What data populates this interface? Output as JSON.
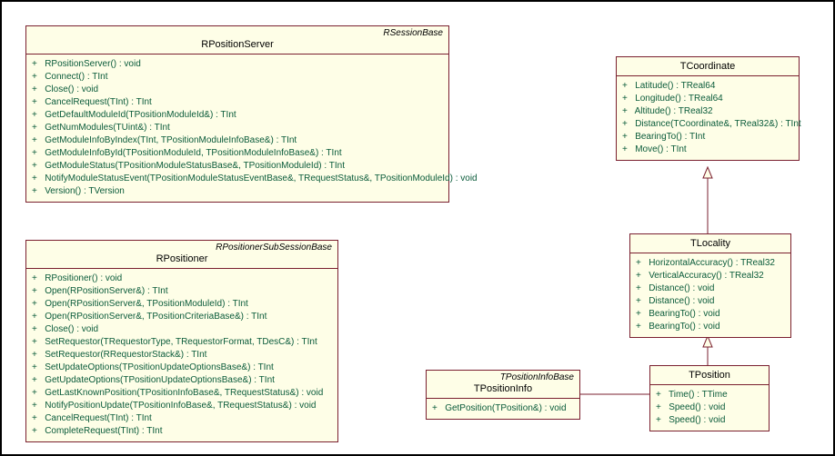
{
  "colors": {
    "box_border": "#7a1f2f",
    "box_bg": "#fefee7",
    "op_text": "#0a5b3a",
    "connector": "#7a1f2f",
    "canvas_border": "#000000"
  },
  "classes": {
    "rPositionServer": {
      "stereotype": "RSessionBase",
      "name": "RPositionServer",
      "ops": [
        "RPositionServer() : void",
        "Connect() : TInt",
        "Close() : void",
        "CancelRequest(TInt) : TInt",
        "GetDefaultModuleId(TPositionModuleId&) : TInt",
        "GetNumModules(TUint&) : TInt",
        "GetModuleInfoByIndex(TInt, TPositionModuleInfoBase&) : TInt",
        "GetModuleInfoById(TPositionModuleId, TPositionModuleInfoBase&) : TInt",
        "GetModuleStatus(TPositionModuleStatusBase&, TPositionModuleId) : TInt",
        "NotifyModuleStatusEvent(TPositionModuleStatusEventBase&, TRequestStatus&, TPositionModuleId) : void",
        "Version() : TVersion"
      ]
    },
    "rPositioner": {
      "stereotype": "RPositionerSubSessionBase",
      "name": "RPositioner",
      "ops": [
        "RPositioner() : void",
        "Open(RPositionServer&) : TInt",
        "Open(RPositionServer&, TPositionModuleId) : TInt",
        "Open(RPositionServer&, TPositionCriteriaBase&) : TInt",
        "Close() : void",
        "SetRequestor(TRequestorType, TRequestorFormat, TDesC&) : TInt",
        "SetRequestor(RRequestorStack&) : TInt",
        "SetUpdateOptions(TPositionUpdateOptionsBase&) : TInt",
        "GetUpdateOptions(TPositionUpdateOptionsBase&) : TInt",
        "GetLastKnownPosition(TPositionInfoBase&, TRequestStatus&) : void",
        "NotifyPositionUpdate(TPositionInfoBase&, TRequestStatus&) : void",
        "CancelRequest(TInt) : TInt",
        "CompleteRequest(TInt) : TInt"
      ]
    },
    "tCoordinate": {
      "stereotype": "",
      "name": "TCoordinate",
      "ops": [
        "Latitude() : TReal64",
        "Longitude() : TReal64",
        "Altitude() : TReal32",
        "Distance(TCoordinate&, TReal32&) : TInt",
        "BearingTo() : TInt",
        "Move() : TInt"
      ]
    },
    "tLocality": {
      "stereotype": "",
      "name": "TLocality",
      "ops": [
        "HorizontalAccuracy() : TReal32",
        "VerticalAccuracy() : TReal32",
        "Distance() : void",
        "Distance() : void",
        "BearingTo() : void",
        "BearingTo() : void"
      ]
    },
    "tPosition": {
      "stereotype": "",
      "name": "TPosition",
      "ops": [
        "Time() : TTime",
        "Speed() : void",
        "Speed() : void"
      ]
    },
    "tPositionInfo": {
      "stereotype": "TPositionInfoBase",
      "name": "TPositionInfo",
      "ops": [
        "GetPosition(TPosition&) : void"
      ]
    }
  }
}
